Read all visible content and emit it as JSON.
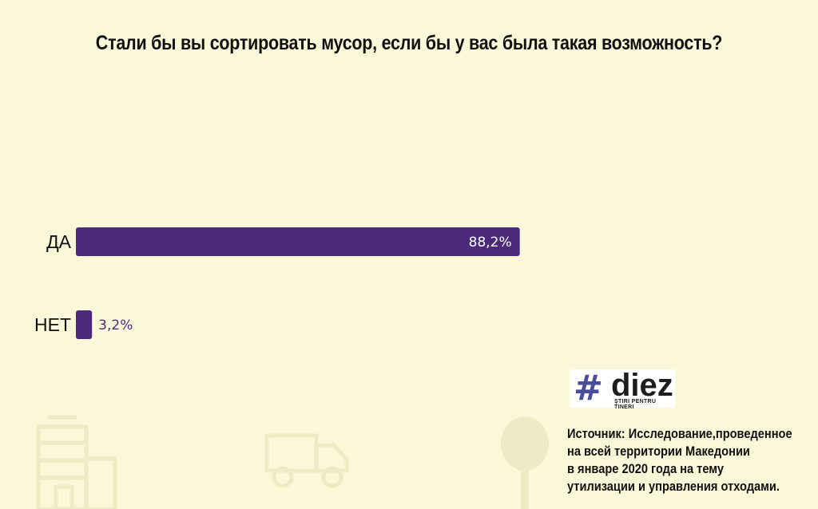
{
  "title": "Стали бы вы сортировать мусор, если бы у вас была такая возможность?",
  "chart_data": {
    "type": "bar",
    "orientation": "horizontal",
    "categories": [
      "ДА",
      "НЕТ"
    ],
    "values": [
      88.2,
      3.2
    ],
    "value_labels": [
      "88,2%",
      "3,2%"
    ],
    "xlim": [
      0,
      100
    ],
    "grid": false,
    "legend": "none",
    "bar_color": "#4b2a7b"
  },
  "logo": {
    "hash": "#",
    "word": "diez",
    "tagline": "ȘTIRI PENTRU TINERI"
  },
  "source": {
    "lines": [
      "Источник: Исследование,проведенное",
      "на всей территории Македонии",
      "в январе 2020 года на тему",
      "утилизации и управления отходами."
    ]
  },
  "decorations": [
    "building-icon",
    "truck-icon",
    "tree-icon"
  ]
}
